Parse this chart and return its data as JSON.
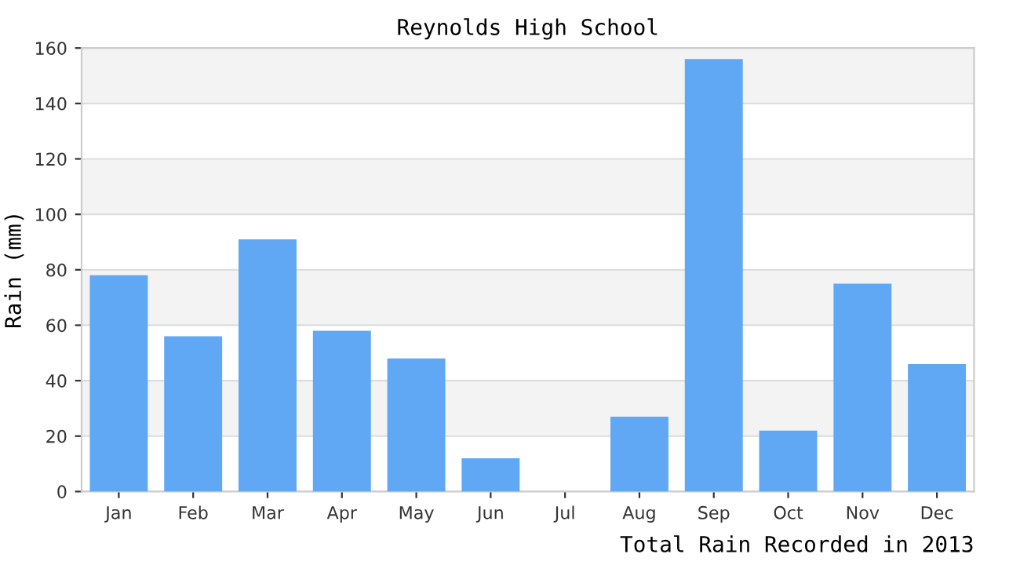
{
  "chart_data": {
    "type": "bar",
    "title": "Reynolds High School",
    "ylabel": "Rain (mm)",
    "annotations": [
      "Total Rain Recorded in 2013"
    ],
    "categories": [
      "Jan",
      "Feb",
      "Mar",
      "Apr",
      "May",
      "Jun",
      "Jul",
      "Aug",
      "Sep",
      "Oct",
      "Nov",
      "Dec"
    ],
    "values": [
      78,
      56,
      91,
      58,
      48,
      12,
      0,
      27,
      156,
      22,
      75,
      46
    ],
    "color": "#60a8f4",
    "ylim": [
      0,
      160
    ],
    "yticks": [
      0,
      20,
      40,
      60,
      80,
      100,
      120,
      140,
      160
    ],
    "grid": "y"
  }
}
